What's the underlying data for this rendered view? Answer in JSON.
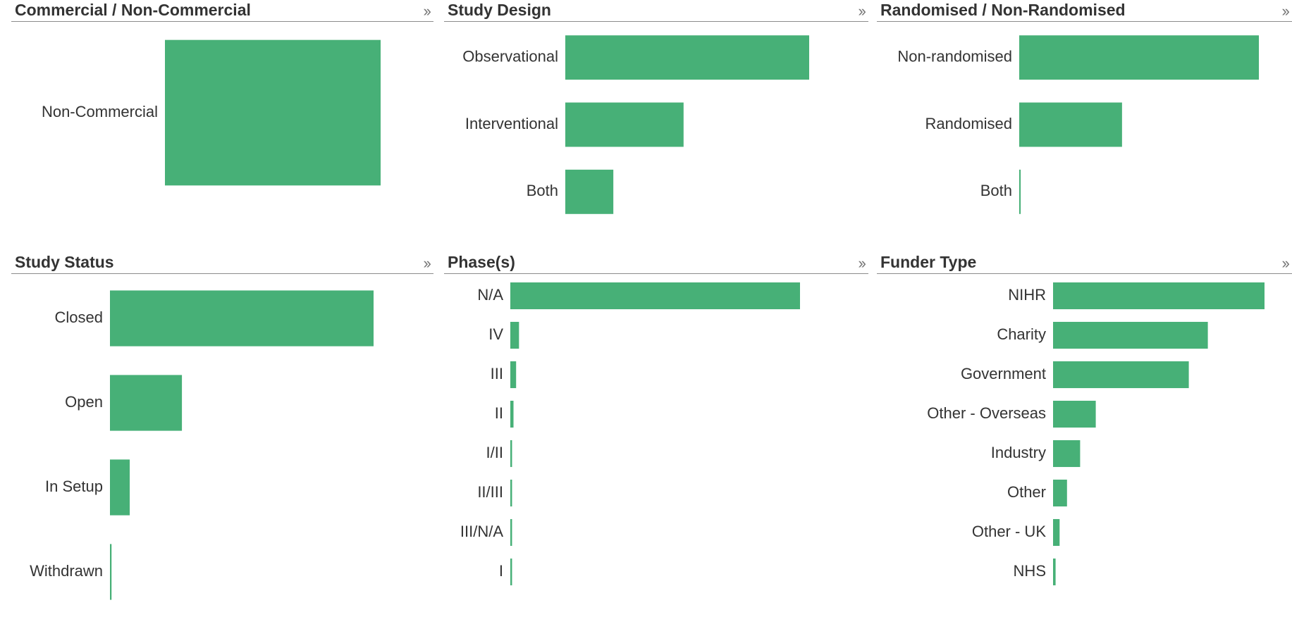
{
  "panels": [
    {
      "title": "Commercial / Non-Commercial",
      "expand_icon": "double-chevron-right-icon"
    },
    {
      "title": "Study Design",
      "expand_icon": "double-chevron-right-icon"
    },
    {
      "title": "Randomised / Non-Randomised",
      "expand_icon": "double-chevron-right-icon"
    },
    {
      "title": "Study Status",
      "expand_icon": "double-chevron-right-icon"
    },
    {
      "title": "Phase(s)",
      "expand_icon": "double-chevron-right-icon"
    },
    {
      "title": "Funder Type",
      "expand_icon": "double-chevron-right-icon"
    }
  ],
  "expand_glyph": "››",
  "colors": {
    "bar": "#47b077",
    "text": "#333333",
    "rule": "#8c8c8c"
  },
  "chart_data": [
    {
      "type": "bar",
      "orientation": "horizontal",
      "title": "Commercial / Non-Commercial",
      "categories": [
        "Non-Commercial"
      ],
      "values": [
        100
      ]
    },
    {
      "type": "bar",
      "orientation": "horizontal",
      "title": "Study Design",
      "categories": [
        "Observational",
        "Interventional",
        "Both"
      ],
      "values": [
        100,
        48.5,
        19.7
      ]
    },
    {
      "type": "bar",
      "orientation": "horizontal",
      "title": "Randomised / Non-Randomised",
      "categories": [
        "Non-randomised",
        "Randomised",
        "Both"
      ],
      "values": [
        100,
        42.9,
        0.6
      ]
    },
    {
      "type": "bar",
      "orientation": "horizontal",
      "title": "Study Status",
      "categories": [
        "Closed",
        "Open",
        "In Setup",
        "Withdrawn"
      ],
      "values": [
        100,
        27.3,
        7.5,
        0.6
      ]
    },
    {
      "type": "bar",
      "orientation": "horizontal",
      "title": "Phase(s)",
      "categories": [
        "N/A",
        "IV",
        "III",
        "II",
        "I/II",
        "II/III",
        "III/N/A",
        "I"
      ],
      "values": [
        100,
        3.0,
        2.0,
        1.1,
        0.6,
        0.6,
        0.6,
        0.6
      ]
    },
    {
      "type": "bar",
      "orientation": "horizontal",
      "title": "Funder Type",
      "categories": [
        "NIHR",
        "Charity",
        "Government",
        "Other - Overseas",
        "Industry",
        "Other",
        "Other - UK",
        "NHS"
      ],
      "values": [
        100,
        73.2,
        64.2,
        20.2,
        12.8,
        6.6,
        3.1,
        1.2
      ]
    }
  ]
}
